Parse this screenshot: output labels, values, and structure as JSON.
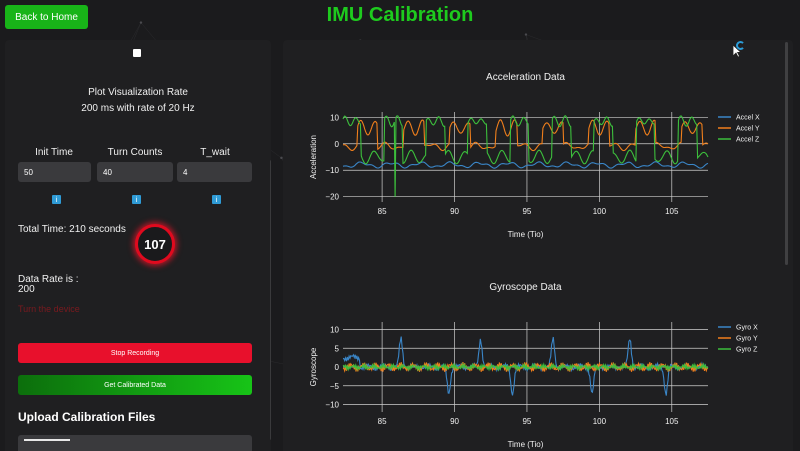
{
  "header": {
    "back_button": "Back to Home",
    "title": "IMU Calibration"
  },
  "left": {
    "plot_rate_title": "Plot Visualization Rate",
    "plot_rate_value": "200 ms with rate of 20 Hz",
    "fields": [
      {
        "label": "Init Time",
        "value": "50",
        "info": "i"
      },
      {
        "label": "Turn Counts",
        "value": "40",
        "info": "i"
      },
      {
        "label": "T_wait",
        "value": "4",
        "info": "i"
      }
    ],
    "total_time": "Total Time: 210 seconds",
    "timer_value": "107",
    "data_rate_label": "Data Rate is :",
    "data_rate_value": "200",
    "device_status": "Turn the device",
    "stop_button": "Stop Recording",
    "calibrated_button": "Get Calibrated Data",
    "upload_title": "Upload Calibration Files"
  },
  "colors": {
    "accent_green": "#1ecb1e",
    "stop_red": "#e8102c",
    "series_x": "#3a86c8",
    "series_y": "#f07f1c",
    "series_z": "#3cbf3c"
  },
  "chart_data": [
    {
      "type": "line",
      "title": "Acceleration Data",
      "xlabel": "Time (Tio)",
      "ylabel": "Acceleration",
      "xlim": [
        82.3,
        107.5
      ],
      "ylim": [
        -22,
        12
      ],
      "x_ticks": [
        85,
        90,
        95,
        100,
        105
      ],
      "y_ticks": [
        10,
        0,
        -10,
        -20
      ],
      "legend_position": "right",
      "series": [
        {
          "name": "Accel X",
          "color": "#3a86c8"
        },
        {
          "name": "Accel Y",
          "color": "#f07f1c"
        },
        {
          "name": "Accel Z",
          "color": "#3cbf3c"
        }
      ]
    },
    {
      "type": "line",
      "title": "Gyroscope Data",
      "xlabel": "Time (Tio)",
      "ylabel": "Gyroscope",
      "xlim": [
        82.3,
        107.5
      ],
      "ylim": [
        -12,
        12
      ],
      "x_ticks": [
        85,
        90,
        95,
        100,
        105
      ],
      "y_ticks": [
        10,
        5,
        0,
        -5,
        -10
      ],
      "legend_position": "right",
      "series": [
        {
          "name": "Gyro X",
          "color": "#3a86c8"
        },
        {
          "name": "Gyro Y",
          "color": "#f07f1c"
        },
        {
          "name": "Gyro Z",
          "color": "#3cbf3c"
        }
      ]
    }
  ]
}
